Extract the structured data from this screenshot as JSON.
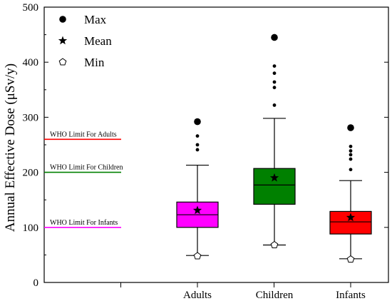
{
  "chart_data": {
    "type": "box",
    "ylabel": "Annual Effective Dose (μSv/y)",
    "ylim": [
      0,
      500
    ],
    "yticks": [
      0,
      100,
      200,
      300,
      400,
      500
    ],
    "categories": [
      "Adults",
      "Children",
      "Infants"
    ],
    "boxes": [
      {
        "category": "Adults",
        "color": "#ff00ff",
        "whisker_low": 49,
        "q1": 100,
        "median": 123,
        "q3": 146,
        "whisker_high": 213,
        "mean": 131,
        "min": 48,
        "max": 292,
        "outliers": [
          266,
          250,
          241
        ]
      },
      {
        "category": "Children",
        "color": "#008000",
        "whisker_low": 68,
        "q1": 142,
        "median": 177,
        "q3": 207,
        "whisker_high": 298,
        "mean": 190,
        "min": 68,
        "max": 445,
        "outliers": [
          393,
          380,
          364,
          354,
          322
        ]
      },
      {
        "category": "Infants",
        "color": "#ff0000",
        "whisker_low": 43,
        "q1": 88,
        "median": 110,
        "q3": 129,
        "whisker_high": 185,
        "mean": 118,
        "min": 42,
        "max": 281,
        "outliers": [
          247,
          239,
          232,
          224,
          205
        ]
      }
    ],
    "legend": {
      "placement": "top-left",
      "items": [
        {
          "symbol": "filled-circle",
          "label": "Max"
        },
        {
          "symbol": "star",
          "label": "Mean"
        },
        {
          "symbol": "open-pentagon",
          "label": "Min"
        }
      ]
    },
    "reference_lines": [
      {
        "label": "WHO Limit For Adults",
        "value": 260,
        "color": "#ff0000"
      },
      {
        "label": "WHO Limit For Children",
        "value": 200,
        "color": "#008000"
      },
      {
        "label": "WHO Limit For Infants",
        "value": 100,
        "color": "#ff00ff"
      }
    ]
  }
}
